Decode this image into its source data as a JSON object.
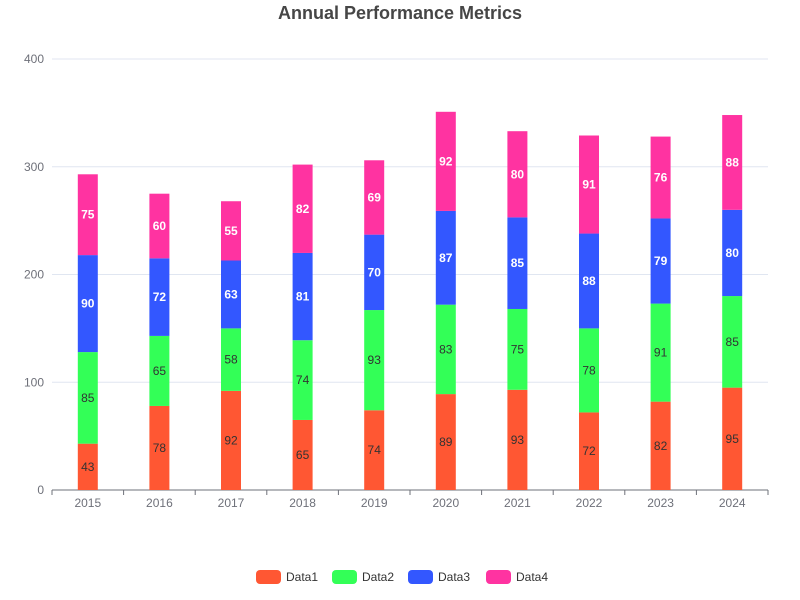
{
  "chart_data": {
    "type": "bar",
    "stacked": true,
    "title": "Annual Performance Metrics",
    "xlabel": "",
    "ylabel": "",
    "ylim": [
      0,
      400
    ],
    "y_ticks": [
      "0",
      "100",
      "200",
      "300",
      "400"
    ],
    "categories": [
      "2015",
      "2016",
      "2017",
      "2018",
      "2019",
      "2020",
      "2021",
      "2022",
      "2023",
      "2024"
    ],
    "series": [
      {
        "name": "Data1",
        "color": "#ff5733",
        "label_color": "#333333",
        "values": [
          43,
          78,
          92,
          65,
          74,
          89,
          93,
          72,
          82,
          95
        ]
      },
      {
        "name": "Data2",
        "color": "#33ff57",
        "label_color": "#333333",
        "values": [
          85,
          65,
          58,
          74,
          93,
          83,
          75,
          78,
          91,
          85
        ]
      },
      {
        "name": "Data3",
        "color": "#3357ff",
        "label_color": "#ffffff",
        "values": [
          90,
          72,
          63,
          81,
          70,
          87,
          85,
          88,
          79,
          80
        ]
      },
      {
        "name": "Data4",
        "color": "#ff33a1",
        "label_color": "#ffffff",
        "values": [
          75,
          60,
          55,
          82,
          69,
          92,
          80,
          91,
          76,
          88
        ]
      }
    ],
    "grid": true,
    "legend": "bottom-center"
  }
}
